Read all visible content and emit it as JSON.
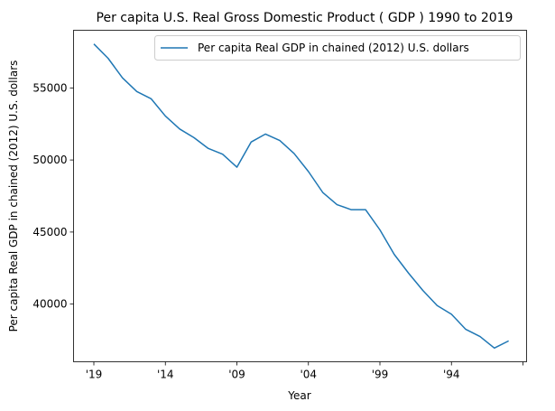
{
  "chart_data": {
    "type": "line",
    "title": "Per capita U.S. Real Gross Domestic Product ( GDP ) 1990 to 2019",
    "xlabel": "Year",
    "ylabel": "Per capita Real GDP in chained (2012) U.S. dollars",
    "x_tick_labels": [
      "'19",
      "'14",
      "'09",
      "'04",
      "'99",
      "'94",
      ""
    ],
    "y_ticks": [
      40000,
      45000,
      50000,
      55000
    ],
    "y_tick_labels": [
      "40000",
      "45000",
      "50000",
      "55000"
    ],
    "ylim": [
      36000,
      59000
    ],
    "x": [
      2019,
      2018,
      2017,
      2016,
      2015,
      2014,
      2013,
      2012,
      2011,
      2010,
      2009,
      2008,
      2007,
      2006,
      2005,
      2004,
      2003,
      2002,
      2001,
      2000,
      1999,
      1998,
      1997,
      1996,
      1995,
      1994,
      1993,
      1992,
      1991,
      1990
    ],
    "series": [
      {
        "name": "Per capita Real GDP in chained (2012) U.S. dollars",
        "color": "#1f77b4",
        "values": [
          58050,
          57050,
          55700,
          54750,
          54250,
          53050,
          52150,
          51550,
          50800,
          50400,
          49500,
          51250,
          51800,
          51350,
          50450,
          49200,
          47750,
          46900,
          46550,
          46550,
          45150,
          43450,
          42150,
          40950,
          39900,
          39300,
          38250,
          37750,
          36950,
          37450
        ]
      }
    ],
    "legend_position": "upper right",
    "grid": false
  }
}
